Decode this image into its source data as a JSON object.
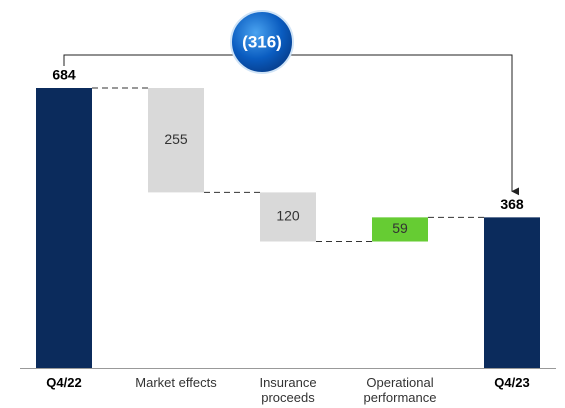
{
  "chart_data": {
    "type": "waterfall",
    "categories": [
      "Q4/22",
      "Market effects",
      "Insurance proceeds",
      "Operational performance",
      "Q4/23"
    ],
    "values": [
      684,
      -255,
      -120,
      59,
      368
    ],
    "value_labels": [
      "684",
      "255",
      "120",
      "59",
      "368"
    ],
    "colors": [
      "#0b2b5c",
      "#d9d9d9",
      "#d9d9d9",
      "#66cc33",
      "#0b2b5c"
    ],
    "annotation": "(316)"
  }
}
